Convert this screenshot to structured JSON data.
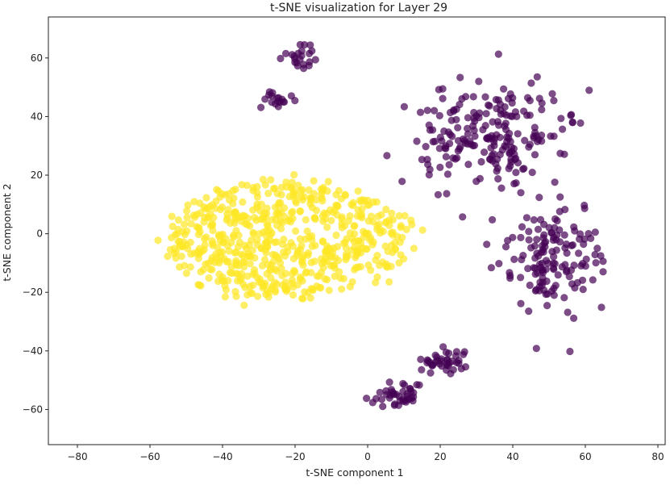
{
  "chart_data": {
    "type": "scatter",
    "title": "t-SNE visualization for Layer 29",
    "xlabel": "t-SNE component 1",
    "ylabel": "t-SNE component 2",
    "xlim": [
      -88,
      82
    ],
    "ylim": [
      -72,
      74
    ],
    "xticks": [
      -80,
      -60,
      -40,
      -20,
      0,
      20,
      40,
      60,
      80
    ],
    "yticks": [
      -60,
      -40,
      -20,
      0,
      20,
      40,
      60
    ],
    "xtick_labels": [
      "−80",
      "−60",
      "−40",
      "−20",
      "0",
      "20",
      "40",
      "60",
      "80"
    ],
    "ytick_labels": [
      "−60",
      "−40",
      "−20",
      "0",
      "20",
      "40",
      "60"
    ],
    "grid": false,
    "legend": "none",
    "point_alpha": 0.7,
    "series": [
      {
        "color": "#fde725",
        "clusters": [
          {
            "center": [
              -22,
              -2
            ],
            "spread": [
              27,
              16
            ],
            "count": 620,
            "shape": "ellipse"
          }
        ]
      },
      {
        "color": "#440154",
        "clusters": [
          {
            "center": [
              32,
              34
            ],
            "spread": [
              20,
              17
            ],
            "count": 210,
            "shape": "gaussian"
          },
          {
            "center": [
              50,
              -8
            ],
            "spread": [
              12,
              18
            ],
            "count": 140,
            "shape": "gaussian"
          },
          {
            "center": [
              -18,
              60
            ],
            "spread": [
              5,
              5
            ],
            "count": 22,
            "shape": "gaussian"
          },
          {
            "center": [
              -25,
              46
            ],
            "spread": [
              5,
              3
            ],
            "count": 18,
            "shape": "gaussian"
          },
          {
            "center": [
              8,
              -55
            ],
            "spread": [
              7,
              4
            ],
            "count": 40,
            "shape": "gaussian"
          },
          {
            "center": [
              22,
              -44
            ],
            "spread": [
              6,
              5
            ],
            "count": 40,
            "shape": "gaussian"
          }
        ]
      }
    ]
  }
}
